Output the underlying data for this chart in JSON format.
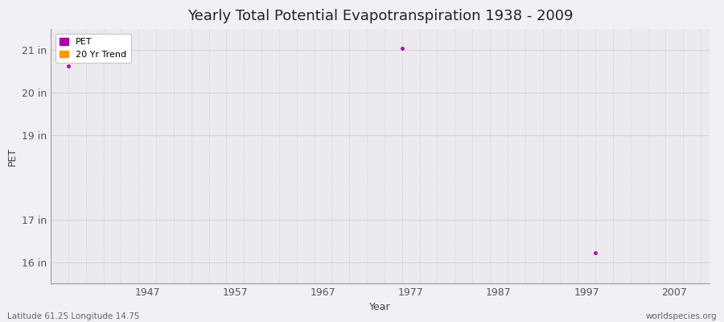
{
  "title": "Yearly Total Potential Evapotranspiration 1938 - 2009",
  "xlabel": "Year",
  "ylabel": "PET",
  "background_color": "#f2f0f5",
  "plot_bg_color": "#eceaf0",
  "grid_color_h": "#d8d4e0",
  "grid_color_v": "#d0ccd8",
  "footer_left": "Latitude 61.25 Longitude 14.75",
  "footer_right": "worldspecies.org",
  "xlim": [
    1936,
    2011
  ],
  "ylim": [
    15.5,
    21.5
  ],
  "yticks": [
    16,
    17,
    19,
    20,
    21
  ],
  "ytick_labels": [
    "16 in",
    "17 in",
    "19 in",
    "20 in",
    "21 in"
  ],
  "xticks": [
    1947,
    1957,
    1967,
    1977,
    1987,
    1997,
    2007
  ],
  "pet_color": "#aa00aa",
  "trend_color": "#ff9900",
  "pet_points": [
    [
      1938,
      20.62
    ],
    [
      1976,
      21.05
    ],
    [
      1998,
      16.22
    ]
  ],
  "legend_labels": [
    "PET",
    "20 Yr Trend"
  ],
  "title_fontsize": 13,
  "axis_label_fontsize": 9,
  "tick_fontsize": 9,
  "footer_fontsize": 7.5
}
